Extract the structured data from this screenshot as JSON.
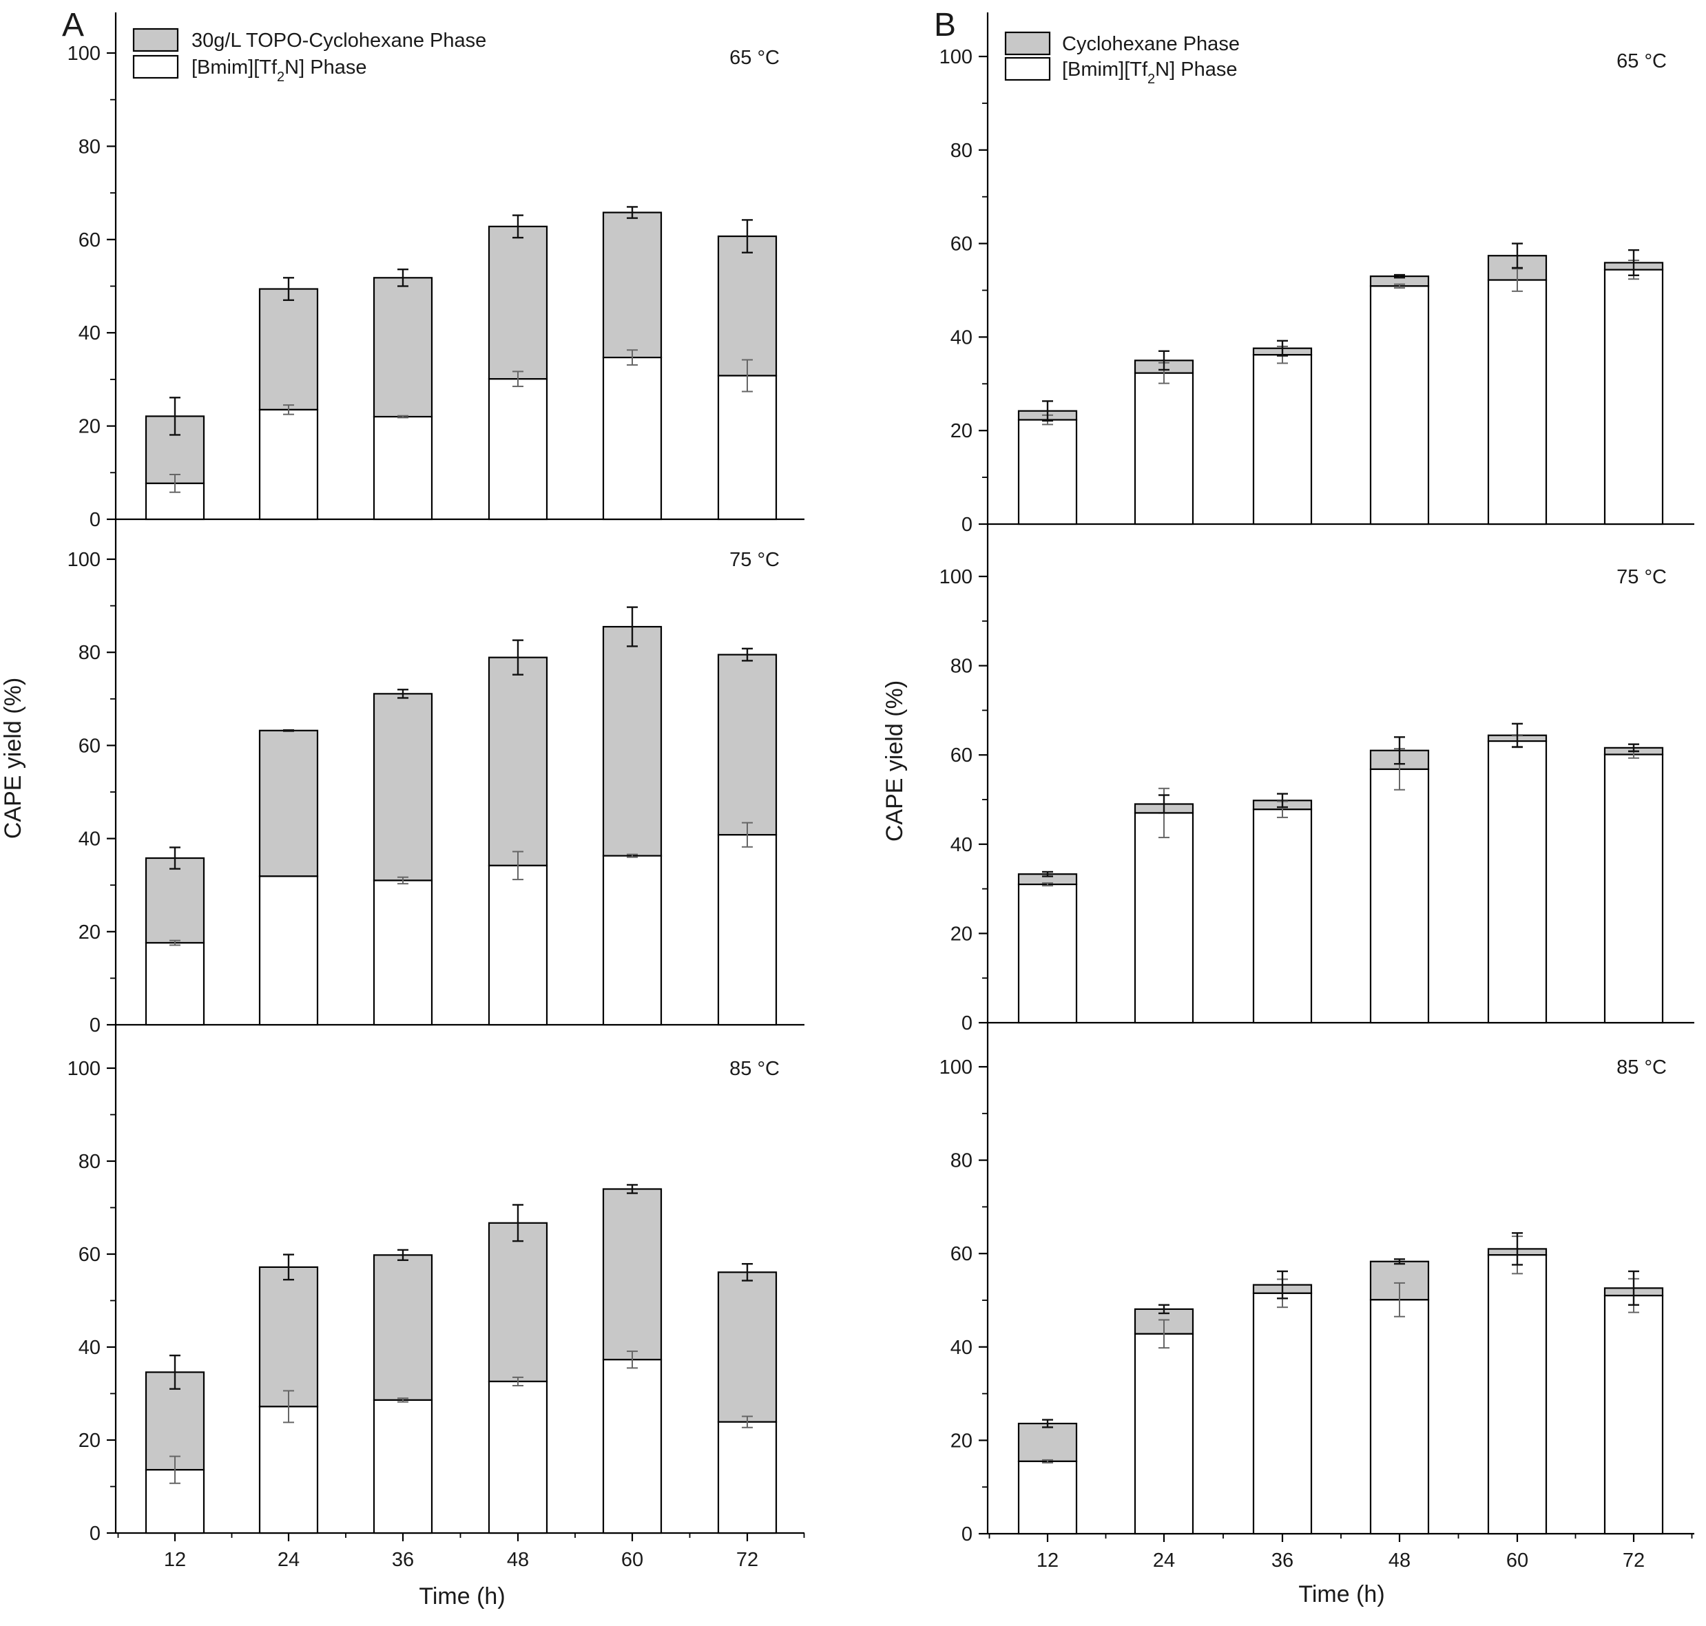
{
  "chart_data": [
    {
      "type": "bar",
      "stacked": true,
      "panel": "A",
      "legend": {
        "top_series": "30g/L TOPO-Cyclohexane Phase",
        "bottom_series_prefix": "[Bmim][Tf",
        "bottom_series_sub": "2",
        "bottom_series_suffix": "N] Phase",
        "placement": "top-left"
      },
      "ylabel": "CAPE yield (%)",
      "xlabel": "Time (h)",
      "categories": [
        "12",
        "24",
        "36",
        "48",
        "60",
        "72"
      ],
      "ylim": [
        0,
        100
      ],
      "yticks": [
        "0",
        "20",
        "40",
        "60",
        "80",
        "100"
      ],
      "subplots": [
        {
          "temperature": "65 °C",
          "bottom_values": [
            7.7,
            23.5,
            22.0,
            30.1,
            34.7,
            30.8
          ],
          "bottom_errors": [
            1.9,
            1.0,
            0.2,
            1.6,
            1.6,
            3.4
          ],
          "total_values": [
            22.1,
            49.4,
            51.8,
            62.8,
            65.8,
            60.7
          ],
          "total_errors": [
            4.0,
            2.4,
            1.8,
            2.4,
            1.2,
            3.5
          ]
        },
        {
          "temperature": "75 °C",
          "bottom_values": [
            17.6,
            31.9,
            31.0,
            34.2,
            36.3,
            40.8
          ],
          "bottom_errors": [
            0.5,
            0.0,
            0.7,
            3.0,
            0.3,
            2.6
          ],
          "total_values": [
            35.8,
            63.2,
            71.1,
            78.9,
            85.5,
            79.5
          ],
          "total_errors": [
            2.3,
            0.1,
            0.9,
            3.7,
            4.2,
            1.3
          ]
        },
        {
          "temperature": "85 °C",
          "bottom_values": [
            13.6,
            27.2,
            28.6,
            32.6,
            37.3,
            23.9
          ],
          "bottom_errors": [
            2.9,
            3.4,
            0.4,
            0.9,
            1.8,
            1.2
          ],
          "total_values": [
            34.6,
            57.2,
            59.8,
            66.7,
            74.0,
            56.1
          ],
          "total_errors": [
            3.6,
            2.7,
            1.1,
            3.9,
            0.9,
            1.8
          ]
        }
      ]
    },
    {
      "type": "bar",
      "stacked": true,
      "panel": "B",
      "legend": {
        "top_series": "Cyclohexane Phase",
        "bottom_series_prefix": "[Bmim][Tf",
        "bottom_series_sub": "2",
        "bottom_series_suffix": "N] Phase",
        "placement": "top-left"
      },
      "ylabel": "CAPE yield (%)",
      "xlabel": "Time (h)",
      "categories": [
        "12",
        "24",
        "36",
        "48",
        "60",
        "72"
      ],
      "ylim": [
        0,
        100
      ],
      "yticks": [
        "0",
        "20",
        "40",
        "60",
        "80",
        "100"
      ],
      "subplots": [
        {
          "temperature": "65 °C",
          "bottom_values": [
            22.3,
            32.3,
            36.2,
            50.9,
            52.2,
            54.4
          ],
          "bottom_errors": [
            1.0,
            2.2,
            1.8,
            0.4,
            2.4,
            2.0
          ],
          "total_values": [
            24.2,
            35.0,
            37.6,
            53.0,
            57.4,
            55.9
          ],
          "total_errors": [
            2.1,
            2.0,
            1.6,
            0.3,
            2.6,
            2.7
          ]
        },
        {
          "temperature": "75 °C",
          "bottom_values": [
            31.0,
            47.0,
            47.8,
            56.8,
            63.1,
            60.1
          ],
          "bottom_errors": [
            0.3,
            5.5,
            1.8,
            4.6,
            1.4,
            0.8
          ],
          "total_values": [
            33.3,
            49.0,
            49.8,
            61.0,
            64.4,
            61.6
          ],
          "total_errors": [
            0.5,
            2.0,
            1.5,
            3.0,
            2.6,
            0.8
          ]
        },
        {
          "temperature": "85 °C",
          "bottom_values": [
            15.5,
            42.8,
            51.5,
            50.1,
            59.7,
            51.0
          ],
          "bottom_errors": [
            0.3,
            3.0,
            3.0,
            3.6,
            4.0,
            3.6
          ],
          "total_values": [
            23.6,
            48.1,
            53.3,
            58.3,
            61.0,
            52.6
          ],
          "total_errors": [
            0.8,
            0.9,
            2.9,
            0.5,
            3.4,
            3.6
          ]
        }
      ]
    }
  ]
}
